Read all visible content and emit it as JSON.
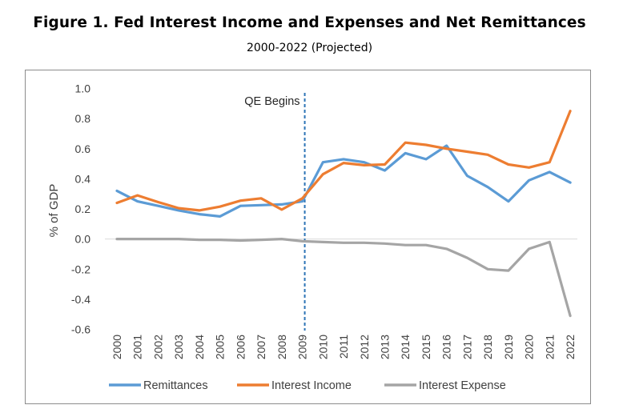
{
  "chart_data": {
    "type": "line",
    "title": "Figure 1. Fed Interest Income and Expenses and Net Remittances",
    "subtitle": "2000-2022 (Projected)",
    "xlabel": "",
    "ylabel": "% of GDP",
    "ylim": [
      -0.6,
      1.0
    ],
    "yticks": [
      1.0,
      0.8,
      0.6,
      0.4,
      0.2,
      0.0,
      -0.2,
      -0.4,
      -0.6
    ],
    "ytick_labels": [
      "1.0",
      "0.8",
      "0.6",
      "0.4",
      "0.2",
      "0.0",
      "-0.2",
      "-0.4",
      "-0.6"
    ],
    "grid": false,
    "legend": "bottom",
    "categories": [
      "2000",
      "2001",
      "2002",
      "2003",
      "2004",
      "2005",
      "2006",
      "2007",
      "2008",
      "2009",
      "2010",
      "2011",
      "2012",
      "2013",
      "2014",
      "2015",
      "2016",
      "2017",
      "2018",
      "2019",
      "2020",
      "2021",
      "2022"
    ],
    "series": [
      {
        "name": "Remittances",
        "color": "#5b9bd5",
        "values": [
          0.32,
          0.25,
          0.22,
          0.19,
          0.165,
          0.15,
          0.22,
          0.225,
          0.23,
          0.25,
          0.51,
          0.53,
          0.51,
          0.455,
          0.57,
          0.53,
          0.62,
          0.42,
          0.345,
          0.25,
          0.39,
          0.445,
          0.375
        ]
      },
      {
        "name": "Interest Income",
        "color": "#ed7d31",
        "values": [
          0.24,
          0.29,
          0.245,
          0.205,
          0.19,
          0.215,
          0.255,
          0.27,
          0.195,
          0.27,
          0.43,
          0.505,
          0.49,
          0.495,
          0.64,
          0.625,
          0.6,
          0.58,
          0.56,
          0.495,
          0.475,
          0.51,
          0.85
        ]
      },
      {
        "name": "Interest Expense",
        "color": "#a5a5a5",
        "values": [
          0.0,
          0.0,
          0.0,
          0.0,
          -0.005,
          -0.005,
          -0.01,
          -0.005,
          0.0,
          -0.015,
          -0.02,
          -0.025,
          -0.025,
          -0.03,
          -0.04,
          -0.04,
          -0.065,
          -0.125,
          -0.2,
          -0.21,
          -0.065,
          -0.02,
          -0.51
        ]
      }
    ],
    "annotations": [
      {
        "text": "QE Begins",
        "x": "2009",
        "style": "dashed-vertical-line",
        "color": "#2e75b6"
      }
    ]
  }
}
